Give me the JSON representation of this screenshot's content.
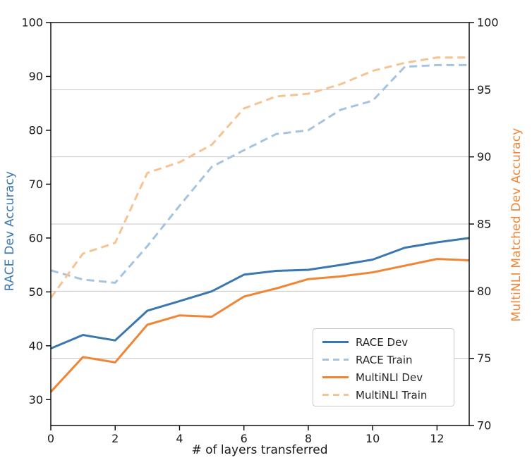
{
  "figure": {
    "background": "#ffffff",
    "spine_color": "#000000",
    "grid_color": "#c6c6c6",
    "tick_text_color": "#1a1a1a"
  },
  "chart_data": {
    "type": "line",
    "title": "",
    "xlabel": "# of layers transferred",
    "x": [
      0,
      1,
      2,
      3,
      4,
      5,
      6,
      7,
      8,
      9,
      10,
      11,
      12,
      13
    ],
    "xlim": [
      0,
      13
    ],
    "x_ticks": [
      0,
      2,
      4,
      6,
      8,
      10,
      12
    ],
    "grid": "horizontal, at right-axis ticks 75-95",
    "grid_right_values": [
      75,
      80,
      85,
      90,
      95
    ],
    "left_axis": {
      "label": "RACE Dev Accuracy",
      "color": "#3a76af",
      "ticks": [
        30,
        40,
        50,
        60,
        70,
        80,
        90,
        100
      ],
      "lim": [
        25.2,
        100
      ]
    },
    "right_axis": {
      "label": "MultiNLI Matched Dev Accuracy",
      "color": "#ef8636",
      "ticks": [
        70,
        75,
        80,
        85,
        90,
        95,
        100
      ],
      "lim": [
        70,
        100
      ]
    },
    "series": [
      {
        "name": "RACE Dev",
        "axis": "left",
        "style": "solid",
        "color": "#3a76af",
        "values": [
          39.5,
          42.0,
          41.0,
          46.5,
          48.3,
          50.1,
          53.2,
          53.9,
          54.1,
          55.0,
          56.0,
          58.2,
          59.2,
          60.0
        ]
      },
      {
        "name": "RACE Train",
        "axis": "left",
        "style": "dashed",
        "color": "#a4c4e0",
        "values": [
          54.0,
          52.3,
          51.7,
          58.5,
          66.0,
          73.2,
          76.3,
          79.3,
          80.0,
          83.8,
          85.5,
          91.8,
          92.1,
          92.1
        ]
      },
      {
        "name": "MultiNLI Dev",
        "axis": "right",
        "style": "solid",
        "color": "#ef8636",
        "values": [
          72.5,
          75.1,
          74.7,
          77.5,
          78.2,
          78.1,
          79.6,
          80.2,
          80.9,
          81.1,
          81.4,
          81.9,
          82.4,
          82.3
        ]
      },
      {
        "name": "MultiNLI Train",
        "axis": "right",
        "style": "dashed",
        "color": "#f6c493",
        "values": [
          79.5,
          82.8,
          83.6,
          88.8,
          89.6,
          90.9,
          93.6,
          94.5,
          94.7,
          95.4,
          96.4,
          97.0,
          97.4,
          97.4
        ]
      }
    ],
    "legend": {
      "position": "lower right",
      "labels": [
        "RACE Dev",
        "RACE Train",
        "MultiNLI Dev",
        "MultiNLI Train"
      ]
    }
  }
}
